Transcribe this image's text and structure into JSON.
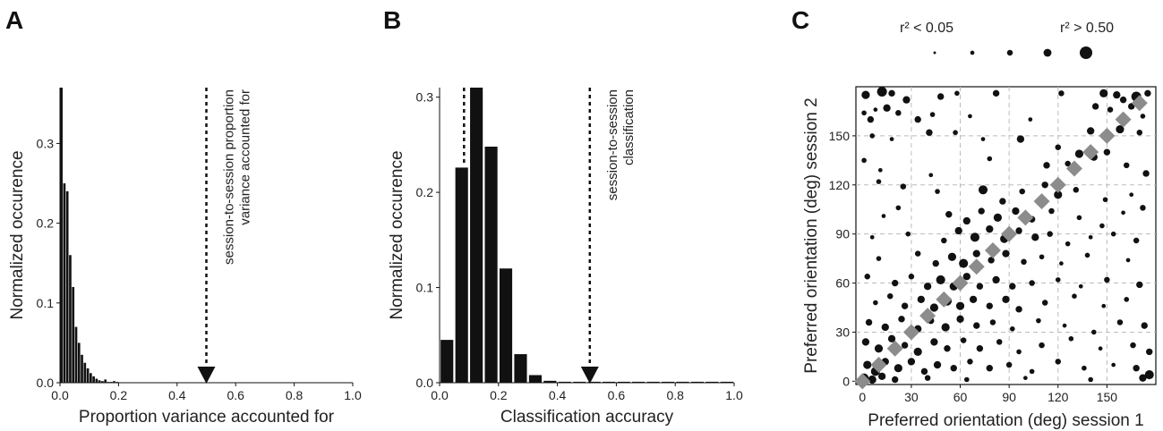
{
  "chart_data": [
    {
      "panel": "A",
      "type": "bar",
      "xlabel": "Proportion variance accounted for",
      "ylabel": "Normalized occurence",
      "xlim": [
        0,
        1.0
      ],
      "ylim": [
        0,
        0.37
      ],
      "xticks": [
        "0.0",
        "0.2",
        "0.4",
        "0.6",
        "0.8",
        "1.0"
      ],
      "yticks": [
        "0.0",
        "0.1",
        "0.2",
        "0.3"
      ],
      "bin_width": 0.01,
      "values": [
        0.37,
        0.25,
        0.24,
        0.16,
        0.12,
        0.07,
        0.05,
        0.035,
        0.025,
        0.018,
        0.012,
        0.008,
        0.005,
        0.003,
        0.002,
        0.004,
        0.001,
        0.001,
        0.002,
        0.001
      ],
      "annotation": {
        "x": 0.5,
        "lines": [
          "session-to-session proportion",
          "variance accounted for"
        ]
      },
      "color": "#111111"
    },
    {
      "panel": "B",
      "type": "bar",
      "xlabel": "Classification accuracy",
      "ylabel": "Normalized occurence",
      "xlim": [
        0,
        1.0
      ],
      "ylim": [
        0,
        0.31
      ],
      "xticks": [
        "0.0",
        "0.2",
        "0.4",
        "0.6",
        "0.8",
        "1.0"
      ],
      "yticks": [
        "0.0",
        "0.1",
        "0.2",
        "0.3"
      ],
      "bin_width": 0.05,
      "values": [
        0.045,
        0.226,
        0.31,
        0.248,
        0.12,
        0.03,
        0.008,
        0.002,
        0.001,
        0.001,
        0.001,
        0.001,
        0.001,
        0.001,
        0.001,
        0.001,
        0.001,
        0.001,
        0.001,
        0.001
      ],
      "chance_line": 0.083,
      "annotation": {
        "x": 0.51,
        "lines": [
          "session-to-session",
          "classification"
        ]
      },
      "color": "#111111"
    },
    {
      "panel": "C",
      "type": "scatter",
      "xlabel": "Preferred orientation (deg) session 1",
      "ylabel": "Preferred orientation (deg) session 2",
      "xlim": [
        -4,
        180
      ],
      "ylim": [
        -2,
        180
      ],
      "xticks": [
        0,
        30,
        60,
        90,
        120,
        150
      ],
      "yticks": [
        0,
        30,
        60,
        90,
        120,
        150
      ],
      "grid": true,
      "legend": {
        "low_label": "r² < 0.05",
        "high_label": "r² > 0.50",
        "sizes": [
          0.05,
          0.15,
          0.25,
          0.38,
          0.5
        ]
      },
      "identity_line": {
        "color": "#8c8c8c",
        "points": [
          [
            0,
            0
          ],
          [
            10,
            10
          ],
          [
            20,
            20
          ],
          [
            30,
            30
          ],
          [
            40,
            40
          ],
          [
            50,
            50
          ],
          [
            60,
            60
          ],
          [
            70,
            70
          ],
          [
            80,
            80
          ],
          [
            90,
            90
          ],
          [
            100,
            100
          ],
          [
            110,
            110
          ],
          [
            120,
            120
          ],
          [
            130,
            130
          ],
          [
            140,
            140
          ],
          [
            150,
            150
          ],
          [
            160,
            160
          ],
          [
            170,
            170
          ]
        ]
      },
      "points": [
        [
          2,
          175,
          0.4
        ],
        [
          12,
          177,
          0.5
        ],
        [
          18,
          176,
          0.3
        ],
        [
          27,
          172,
          0.35
        ],
        [
          48,
          174,
          0.3
        ],
        [
          58,
          176,
          0.2
        ],
        [
          82,
          176,
          0.3
        ],
        [
          122,
          176,
          0.25
        ],
        [
          148,
          176,
          0.4
        ],
        [
          156,
          175,
          0.35
        ],
        [
          160,
          172,
          0.3
        ],
        [
          168,
          174,
          0.5
        ],
        [
          175,
          176,
          0.3
        ],
        [
          1,
          164,
          0.2
        ],
        [
          5,
          160,
          0.3
        ],
        [
          8,
          166,
          0.15
        ],
        [
          15,
          167,
          0.35
        ],
        [
          22,
          164,
          0.25
        ],
        [
          34,
          160,
          0.3
        ],
        [
          43,
          163,
          0.2
        ],
        [
          66,
          162,
          0.15
        ],
        [
          103,
          160,
          0.15
        ],
        [
          143,
          168,
          0.3
        ],
        [
          152,
          166,
          0.25
        ],
        [
          165,
          168,
          0.3
        ],
        [
          172,
          162,
          0.2
        ],
        [
          6,
          150,
          0.2
        ],
        [
          18,
          148,
          0.15
        ],
        [
          41,
          152,
          0.3
        ],
        [
          57,
          152,
          0.2
        ],
        [
          74,
          148,
          0.15
        ],
        [
          97,
          148,
          0.35
        ],
        [
          120,
          143,
          0.25
        ],
        [
          140,
          153,
          0.35
        ],
        [
          148,
          150,
          0.3
        ],
        [
          158,
          154,
          0.4
        ],
        [
          170,
          152,
          0.25
        ],
        [
          1,
          135,
          0.2
        ],
        [
          11,
          129,
          0.15
        ],
        [
          42,
          126,
          0.15
        ],
        [
          78,
          136,
          0.2
        ],
        [
          113,
          132,
          0.3
        ],
        [
          126,
          133,
          0.25
        ],
        [
          133,
          139,
          0.4
        ],
        [
          142,
          137,
          0.35
        ],
        [
          150,
          140,
          0.3
        ],
        [
          162,
          132,
          0.25
        ],
        [
          174,
          127,
          0.3
        ],
        [
          10,
          122,
          0.2
        ],
        [
          25,
          119,
          0.25
        ],
        [
          46,
          116,
          0.2
        ],
        [
          74,
          117,
          0.45
        ],
        [
          86,
          110,
          0.3
        ],
        [
          98,
          116,
          0.25
        ],
        [
          112,
          120,
          0.3
        ],
        [
          120,
          114,
          0.4
        ],
        [
          131,
          117,
          0.25
        ],
        [
          149,
          111,
          0.2
        ],
        [
          165,
          114,
          0.15
        ],
        [
          13,
          101,
          0.15
        ],
        [
          22,
          106,
          0.2
        ],
        [
          53,
          102,
          0.3
        ],
        [
          64,
          98,
          0.35
        ],
        [
          73,
          104,
          0.3
        ],
        [
          83,
          100,
          0.4
        ],
        [
          94,
          104,
          0.35
        ],
        [
          104,
          99,
          0.3
        ],
        [
          116,
          104,
          0.25
        ],
        [
          133,
          100,
          0.2
        ],
        [
          147,
          95,
          0.2
        ],
        [
          160,
          103,
          0.15
        ],
        [
          172,
          106,
          0.25
        ],
        [
          6,
          88,
          0.15
        ],
        [
          28,
          90,
          0.2
        ],
        [
          50,
          86,
          0.25
        ],
        [
          59,
          92,
          0.35
        ],
        [
          69,
          88,
          0.45
        ],
        [
          78,
          93,
          0.35
        ],
        [
          87,
          87,
          0.4
        ],
        [
          96,
          92,
          0.3
        ],
        [
          106,
          88,
          0.35
        ],
        [
          115,
          90,
          0.25
        ],
        [
          126,
          84,
          0.2
        ],
        [
          140,
          88,
          0.15
        ],
        [
          154,
          90,
          0.2
        ],
        [
          168,
          86,
          0.25
        ],
        [
          10,
          75,
          0.2
        ],
        [
          34,
          78,
          0.25
        ],
        [
          45,
          72,
          0.3
        ],
        [
          55,
          76,
          0.4
        ],
        [
          62,
          72,
          0.45
        ],
        [
          70,
          78,
          0.35
        ],
        [
          79,
          74,
          0.3
        ],
        [
          88,
          78,
          0.35
        ],
        [
          99,
          73,
          0.25
        ],
        [
          110,
          76,
          0.2
        ],
        [
          122,
          72,
          0.15
        ],
        [
          138,
          77,
          0.2
        ],
        [
          163,
          74,
          0.15
        ],
        [
          3,
          64,
          0.25
        ],
        [
          20,
          60,
          0.3
        ],
        [
          30,
          64,
          0.25
        ],
        [
          40,
          58,
          0.35
        ],
        [
          48,
          62,
          0.45
        ],
        [
          56,
          58,
          0.4
        ],
        [
          64,
          64,
          0.35
        ],
        [
          72,
          58,
          0.3
        ],
        [
          82,
          62,
          0.35
        ],
        [
          92,
          58,
          0.3
        ],
        [
          104,
          60,
          0.25
        ],
        [
          120,
          62,
          0.2
        ],
        [
          134,
          58,
          0.15
        ],
        [
          150,
          62,
          0.25
        ],
        [
          170,
          59,
          0.3
        ],
        [
          8,
          48,
          0.2
        ],
        [
          17,
          52,
          0.25
        ],
        [
          26,
          46,
          0.3
        ],
        [
          36,
          50,
          0.35
        ],
        [
          44,
          45,
          0.4
        ],
        [
          52,
          49,
          0.45
        ],
        [
          60,
          46,
          0.4
        ],
        [
          68,
          50,
          0.35
        ],
        [
          78,
          46,
          0.3
        ],
        [
          88,
          50,
          0.35
        ],
        [
          96,
          44,
          0.3
        ],
        [
          112,
          48,
          0.25
        ],
        [
          130,
          52,
          0.2
        ],
        [
          148,
          46,
          0.15
        ],
        [
          162,
          50,
          0.2
        ],
        [
          4,
          36,
          0.3
        ],
        [
          14,
          33,
          0.35
        ],
        [
          24,
          38,
          0.3
        ],
        [
          34,
          32,
          0.35
        ],
        [
          42,
          37,
          0.3
        ],
        [
          51,
          33,
          0.4
        ],
        [
          60,
          38,
          0.35
        ],
        [
          70,
          34,
          0.3
        ],
        [
          80,
          36,
          0.25
        ],
        [
          92,
          32,
          0.2
        ],
        [
          108,
          37,
          0.2
        ],
        [
          124,
          34,
          0.15
        ],
        [
          142,
          30,
          0.2
        ],
        [
          158,
          36,
          0.25
        ],
        [
          173,
          34,
          0.3
        ],
        [
          2,
          24,
          0.35
        ],
        [
          10,
          20,
          0.4
        ],
        [
          18,
          26,
          0.35
        ],
        [
          26,
          22,
          0.3
        ],
        [
          34,
          18,
          0.4
        ],
        [
          44,
          24,
          0.35
        ],
        [
          52,
          20,
          0.3
        ],
        [
          62,
          25,
          0.25
        ],
        [
          72,
          20,
          0.3
        ],
        [
          84,
          24,
          0.25
        ],
        [
          96,
          18,
          0.2
        ],
        [
          110,
          22,
          0.25
        ],
        [
          128,
          26,
          0.2
        ],
        [
          146,
          20,
          0.15
        ],
        [
          166,
          22,
          0.25
        ],
        [
          176,
          18,
          0.3
        ],
        [
          3,
          10,
          0.4
        ],
        [
          8,
          6,
          0.45
        ],
        [
          14,
          12,
          0.35
        ],
        [
          22,
          8,
          0.4
        ],
        [
          30,
          12,
          0.35
        ],
        [
          38,
          6,
          0.3
        ],
        [
          46,
          10,
          0.35
        ],
        [
          56,
          8,
          0.3
        ],
        [
          66,
          12,
          0.25
        ],
        [
          78,
          8,
          0.3
        ],
        [
          90,
          10,
          0.25
        ],
        [
          104,
          6,
          0.2
        ],
        [
          120,
          12,
          0.25
        ],
        [
          136,
          8,
          0.2
        ],
        [
          154,
          10,
          0.15
        ],
        [
          168,
          8,
          0.3
        ],
        [
          176,
          4,
          0.45
        ],
        [
          1,
          2,
          0.45
        ],
        [
          6,
          1,
          0.4
        ],
        [
          12,
          3,
          0.35
        ],
        [
          20,
          1,
          0.3
        ],
        [
          40,
          2,
          0.25
        ],
        [
          64,
          1,
          0.2
        ],
        [
          100,
          2,
          0.15
        ],
        [
          140,
          1,
          0.2
        ],
        [
          172,
          2,
          0.35
        ]
      ]
    }
  ],
  "panel_letters": {
    "a": "A",
    "b": "B",
    "c": "C"
  },
  "legend": {
    "low": "r² < 0.05",
    "high": "r² > 0.50"
  }
}
